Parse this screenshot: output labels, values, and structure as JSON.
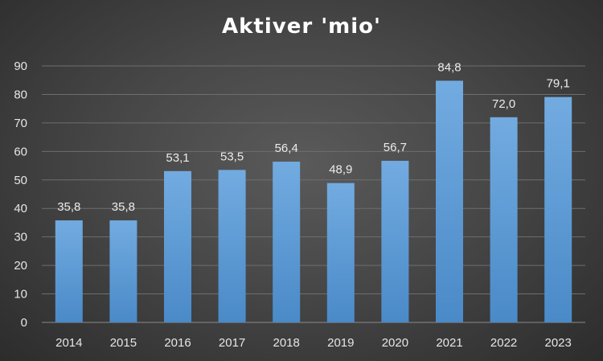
{
  "chart_data": {
    "type": "bar",
    "title": "Aktiver 'mio'",
    "categories": [
      "2014",
      "2015",
      "2016",
      "2017",
      "2018",
      "2019",
      "2020",
      "2021",
      "2022",
      "2023"
    ],
    "values": [
      35.8,
      35.8,
      53.1,
      53.5,
      56.4,
      48.9,
      56.7,
      84.8,
      72.0,
      79.1
    ],
    "data_labels": [
      "35,8",
      "35,8",
      "53,1",
      "53,5",
      "56,4",
      "48,9",
      "56,7",
      "84,8",
      "72,0",
      "79,1"
    ],
    "y_ticks": [
      "0",
      "10",
      "20",
      "30",
      "40",
      "50",
      "60",
      "70",
      "80",
      "90"
    ],
    "ylim": [
      0,
      90
    ],
    "grid": true,
    "legend": "none",
    "bar_color": "#5b9bd5"
  }
}
